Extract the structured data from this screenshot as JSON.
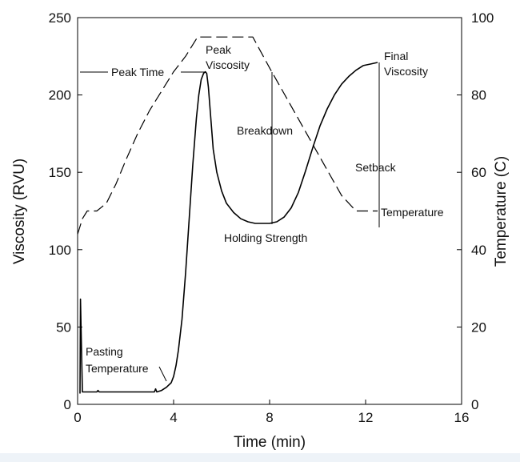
{
  "chart_data": {
    "type": "line",
    "title": "",
    "xlabel": "Time (min)",
    "ylabel": "Viscosity (RVU)",
    "y2label": "Temperature (C)",
    "xlim": [
      0,
      16
    ],
    "ylim": [
      0,
      250
    ],
    "y2lim": [
      0,
      100
    ],
    "xticks": [
      "0",
      "4",
      "8",
      "12",
      "16"
    ],
    "yticks": [
      "0",
      "50",
      "100",
      "150",
      "200",
      "250"
    ],
    "y2ticks": [
      "0",
      "20",
      "40",
      "60",
      "80",
      "100"
    ],
    "grid": false,
    "series": [
      {
        "axis": "left",
        "style": "solid",
        "x": [
          0.1,
          0.12,
          0.15,
          0.2,
          0.8,
          0.85,
          0.9,
          3.2,
          3.25,
          3.3,
          3.5,
          3.7,
          3.9,
          4.0,
          4.1,
          4.2,
          4.35,
          4.5,
          4.65,
          4.8,
          4.95,
          5.05,
          5.15,
          5.25,
          5.32,
          5.38,
          5.45,
          5.55,
          5.65,
          5.8,
          6.0,
          6.2,
          6.5,
          6.8,
          7.1,
          7.4,
          7.7,
          8.0,
          8.3,
          8.6,
          8.9,
          9.2,
          9.5,
          9.8,
          10.1,
          10.4,
          10.7,
          11.0,
          11.3,
          11.6,
          11.9,
          12.2,
          12.5
        ],
        "values": [
          7,
          68,
          45,
          8,
          8,
          9,
          8,
          8,
          10,
          8,
          9,
          11,
          14,
          18,
          25,
          35,
          55,
          85,
          120,
          155,
          185,
          200,
          210,
          214,
          215,
          214,
          205,
          185,
          165,
          150,
          138,
          130,
          124,
          120,
          118,
          117,
          117,
          117,
          118,
          121,
          127,
          137,
          151,
          166,
          180,
          191,
          200,
          207,
          212,
          216,
          219,
          220,
          221
        ]
      },
      {
        "axis": "right",
        "style": "dashed",
        "name": "Temperature",
        "x": [
          0,
          0.2,
          0.4,
          0.8,
          1.2,
          1.6,
          2.0,
          2.5,
          3.0,
          3.5,
          4.0,
          4.5,
          5.0,
          7.3,
          8.0,
          9.0,
          10.0,
          11.0,
          11.6,
          12.0,
          12.5
        ],
        "values": [
          44,
          48,
          50,
          50,
          52,
          57,
          63,
          70,
          76,
          81,
          86,
          90,
          95,
          95,
          87,
          76,
          65,
          54,
          50,
          50,
          50
        ]
      }
    ],
    "annotations": {
      "peak_time": "Peak Time",
      "peak_viscosity": [
        "Peak",
        "Viscosity"
      ],
      "final_viscosity": [
        "Final",
        "Viscosity"
      ],
      "breakdown": "Breakdown",
      "setback": "Setback",
      "holding_strength": "Holding Strength",
      "temperature": "Temperature",
      "pasting_temperature": [
        "Pasting",
        "Temperature"
      ]
    },
    "colors": {
      "line": "#000000",
      "background": "#eef3f8",
      "plot_bg": "#ffffff"
    }
  }
}
